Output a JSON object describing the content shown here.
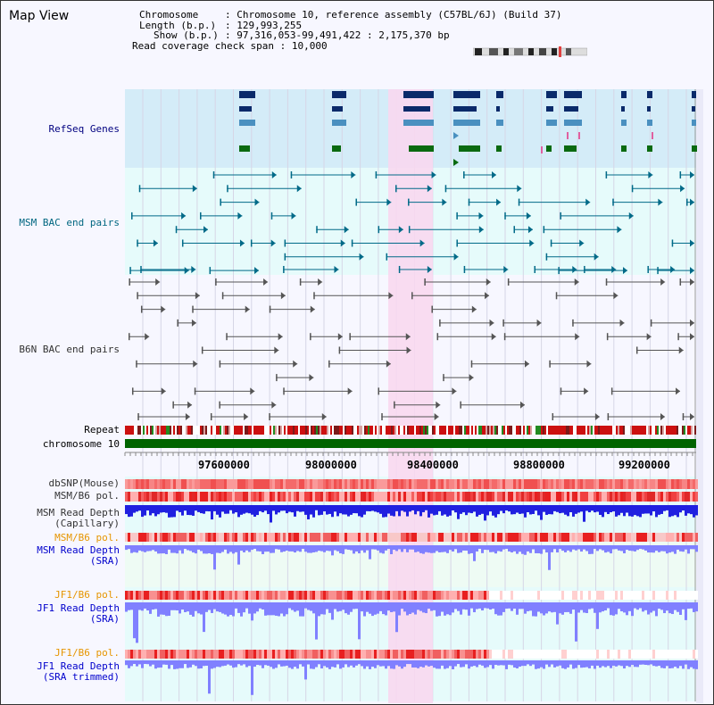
{
  "map_title": "Map View",
  "info": {
    "chromosome_label": "Chromosome",
    "chromosome_value": "Chromosome 10, reference assembly (C57BL/6J) (Build 37)",
    "length_label": "Length (b.p.)",
    "length_value": "129,993,255",
    "show_label": "Show (b.p.)",
    "show_value": "97,316,053-99,491,422 : 2,175,370 bp",
    "coverage_label": "Read coverage check span",
    "coverage_value": "10,000"
  },
  "axis": {
    "ticks": [
      "97600000",
      "98000000",
      "98400000",
      "98800000",
      "99200000"
    ]
  },
  "tracks": {
    "refseq": "RefSeq Genes",
    "msm_bac": "MSM BAC end pairs",
    "b6n_bac": "B6N BAC end pairs",
    "repeat": "Repeat",
    "chromosome": "chromosome 10",
    "dbsnp": "dbSNP(Mouse)",
    "msm_pol_1": "MSM/B6 pol.",
    "msm_depth_cap_1": "MSM Read Depth",
    "msm_depth_cap_2": "(Capillary)",
    "msm_pol_2": "MSM/B6 pol.",
    "msm_depth_sra_1": "MSM Read Depth",
    "msm_depth_sra_2": "(SRA)",
    "jf1_pol_1": "JF1/B6 pol.",
    "jf1_depth_sra_1": "JF1 Read Depth",
    "jf1_depth_sra_2": "(SRA)",
    "jf1_pol_2": "JF1/B6 pol.",
    "jf1_depth_trim_1": "JF1 Read Depth",
    "jf1_depth_trim_2": "(SRA trimmed)"
  },
  "colors": {
    "highlight": "#f8d8f0",
    "refseq_bg": "#d4ecf8",
    "msm_bg": "#e6fbfb",
    "gene_navy": "#0a2a6a",
    "gene_mid": "#4a90c0",
    "gene_green": "#0a6a10",
    "teal": "#006a88",
    "gray": "#555555",
    "chrom_green": "#006400",
    "depth_blue": "#2020e0",
    "depth_light": "#8080ff",
    "pol_red": "#e82020"
  }
}
